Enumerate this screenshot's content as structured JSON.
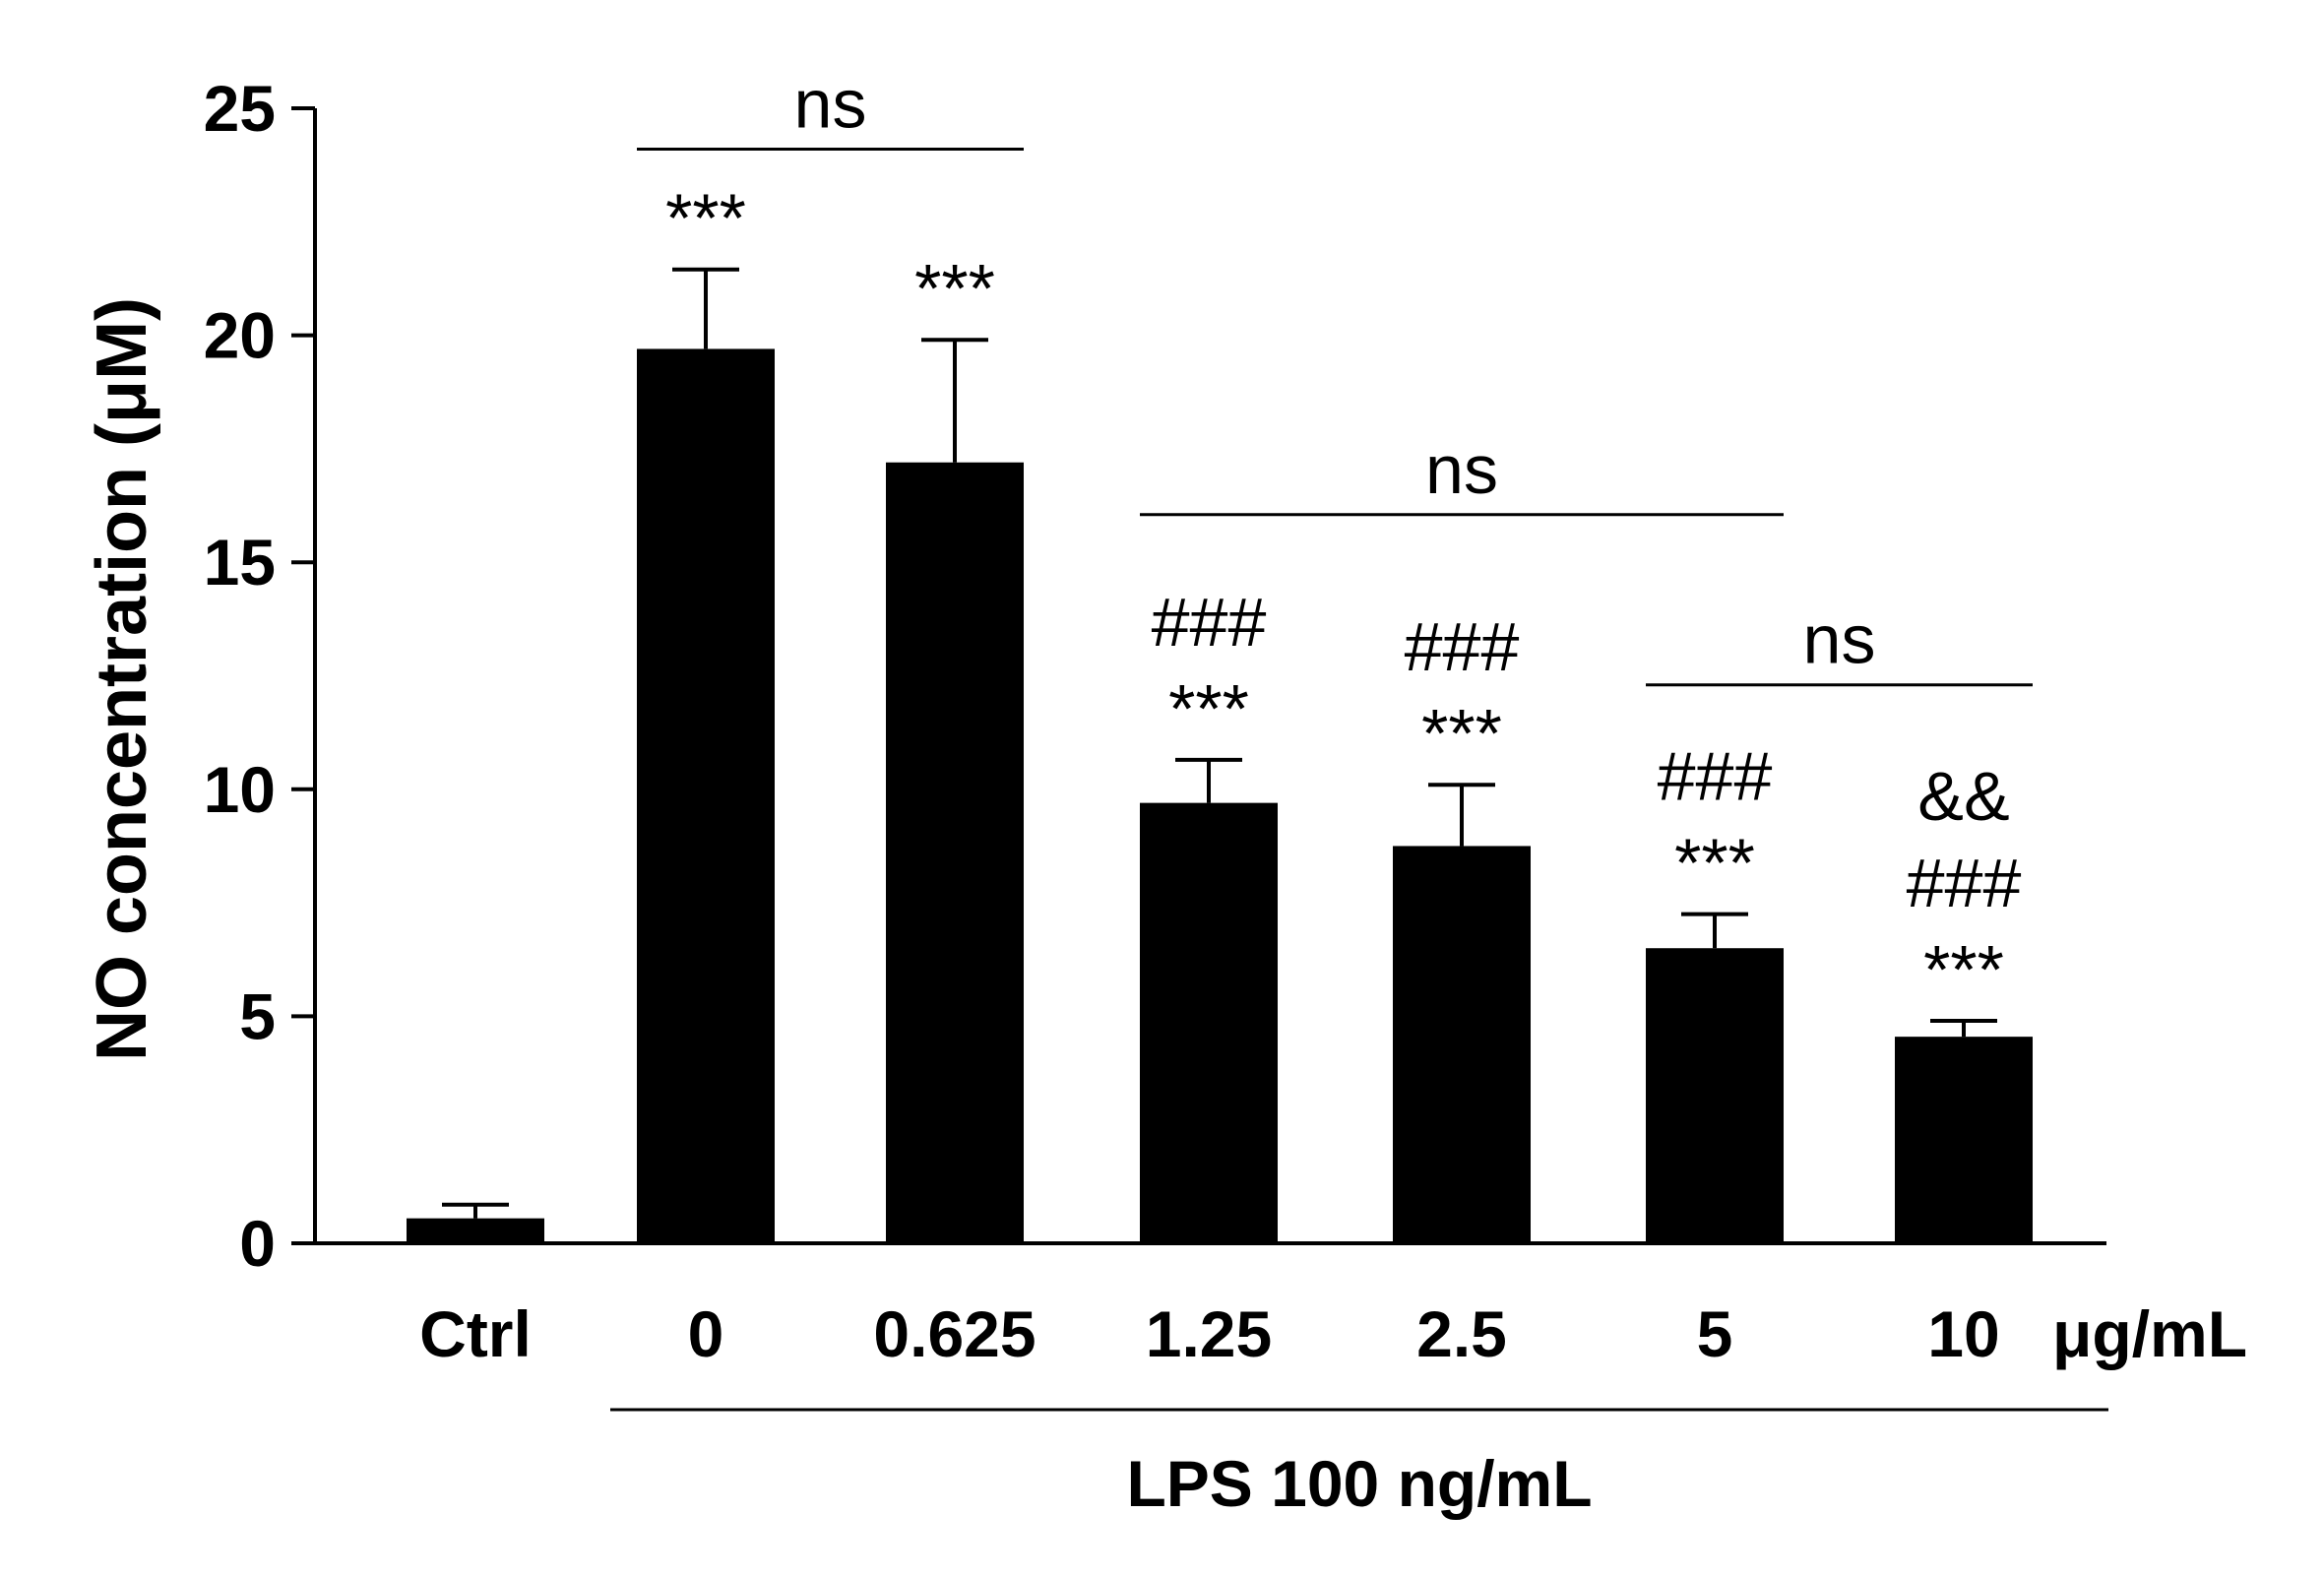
{
  "chart_data": {
    "type": "bar",
    "ylabel": "NO concentration (μM)",
    "ylim": [
      0,
      25
    ],
    "yticks": [
      0,
      5,
      10,
      15,
      20,
      25
    ],
    "grid": false,
    "categories": [
      "Ctrl",
      "0",
      "0.625",
      "1.25",
      "2.5",
      "5",
      "10"
    ],
    "values": [
      0.55,
      19.7,
      17.2,
      9.7,
      8.75,
      6.5,
      4.55
    ],
    "errors": [
      0.3,
      1.75,
      2.7,
      0.95,
      1.35,
      0.75,
      0.35
    ],
    "bar_color": "#000000",
    "x_unit": "μg/mL",
    "group_label": "LPS 100 ng/mL",
    "group_categories": [
      1,
      6
    ],
    "annotations": [
      {
        "category": 1,
        "lines": [
          "***"
        ]
      },
      {
        "category": 2,
        "lines": [
          "***"
        ]
      },
      {
        "category": 3,
        "lines": [
          "###",
          "***"
        ]
      },
      {
        "category": 4,
        "lines": [
          "###",
          "***"
        ]
      },
      {
        "category": 5,
        "lines": [
          "###",
          "***"
        ]
      },
      {
        "category": 6,
        "lines": [
          "&&",
          "###",
          "***"
        ]
      }
    ],
    "comparisons": [
      {
        "from": 1,
        "to": 2,
        "label": "ns",
        "y": 24.1
      },
      {
        "from": 3,
        "to": 5,
        "label": "ns",
        "y": 16.05
      },
      {
        "from": 5,
        "to": 6,
        "label": "ns",
        "y": 12.3
      }
    ]
  }
}
